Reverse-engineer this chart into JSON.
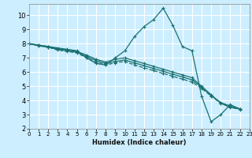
{
  "xlabel": "Humidex (Indice chaleur)",
  "background_color": "#cceeff",
  "grid_color": "#ffffff",
  "line_color": "#1a7070",
  "xlim": [
    0,
    23
  ],
  "ylim": [
    2,
    10.8
  ],
  "xticks": [
    0,
    1,
    2,
    3,
    4,
    5,
    6,
    7,
    8,
    9,
    10,
    11,
    12,
    13,
    14,
    15,
    16,
    17,
    18,
    19,
    20,
    21,
    22,
    23
  ],
  "yticks": [
    2,
    3,
    4,
    5,
    6,
    7,
    8,
    9,
    10
  ],
  "lines": [
    {
      "x": [
        0,
        1,
        2,
        3,
        4,
        5,
        6,
        7,
        8,
        9,
        10,
        11,
        12,
        13,
        14,
        15,
        16,
        17,
        18,
        19,
        20,
        21,
        22
      ],
      "y": [
        8.0,
        7.9,
        7.8,
        7.7,
        7.6,
        7.5,
        7.0,
        6.6,
        6.5,
        7.0,
        7.5,
        8.5,
        9.2,
        9.7,
        10.5,
        9.3,
        7.8,
        7.5,
        4.3,
        2.5,
        3.0,
        3.7,
        3.4
      ],
      "style": "-",
      "marker": "+"
    },
    {
      "x": [
        0,
        1,
        2,
        3,
        4,
        5,
        6,
        7,
        8,
        9,
        10,
        11,
        12,
        13,
        14,
        15,
        16,
        17,
        18,
        19,
        20,
        21,
        22
      ],
      "y": [
        8.0,
        7.9,
        7.8,
        7.65,
        7.55,
        7.45,
        7.2,
        6.9,
        6.7,
        6.9,
        7.0,
        6.8,
        6.6,
        6.4,
        6.2,
        6.0,
        5.8,
        5.6,
        5.0,
        4.4,
        3.8,
        3.5,
        3.4
      ],
      "style": "-",
      "marker": "+"
    },
    {
      "x": [
        0,
        1,
        2,
        3,
        4,
        5,
        6,
        7,
        8,
        9,
        10,
        11,
        12,
        13,
        14,
        15,
        16,
        17,
        18,
        19,
        20,
        21,
        22
      ],
      "y": [
        8.0,
        7.85,
        7.75,
        7.6,
        7.5,
        7.4,
        7.1,
        6.8,
        6.6,
        6.75,
        6.85,
        6.65,
        6.45,
        6.25,
        6.05,
        5.85,
        5.65,
        5.45,
        4.95,
        4.35,
        3.85,
        3.6,
        3.4
      ],
      "style": "-",
      "marker": "+"
    },
    {
      "x": [
        0,
        1,
        2,
        3,
        4,
        5,
        6,
        7,
        8,
        9,
        10,
        11,
        12,
        13,
        14,
        15,
        16,
        17,
        18,
        19,
        20,
        21,
        22
      ],
      "y": [
        8.0,
        7.85,
        7.75,
        7.55,
        7.45,
        7.35,
        7.0,
        6.7,
        6.5,
        6.65,
        6.75,
        6.5,
        6.3,
        6.1,
        5.9,
        5.7,
        5.5,
        5.3,
        4.85,
        4.3,
        3.8,
        3.55,
        3.35
      ],
      "style": "--",
      "marker": "+"
    }
  ]
}
